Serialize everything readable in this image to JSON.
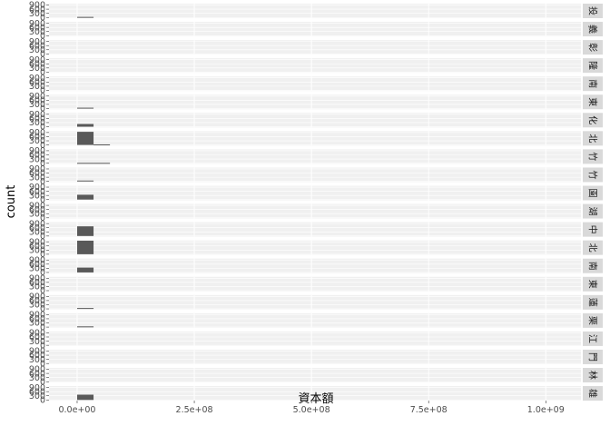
{
  "chart_data": {
    "type": "bar",
    "xlabel": "資本額",
    "ylabel": "count",
    "xlim": [
      -60000000,
      1075000000
    ],
    "x_ticks": [
      {
        "value": 0,
        "label": "0.0e+00"
      },
      {
        "value": 250000000,
        "label": "2.5e+08"
      },
      {
        "value": 500000000,
        "label": "5.0e+08"
      },
      {
        "value": 750000000,
        "label": "7.5e+08"
      },
      {
        "value": 1000000000,
        "label": "1.0e+09"
      }
    ],
    "y_ticks": [
      {
        "value": 0,
        "label": "0"
      },
      {
        "value": 300,
        "label": "300"
      },
      {
        "value": 600,
        "label": "600"
      },
      {
        "value": 900,
        "label": "900"
      }
    ],
    "ylim": [
      -50,
      1000
    ],
    "bin_edges": [
      0,
      35000000,
      70000000
    ],
    "panels": [
      {
        "label": "投",
        "counts": [
          40,
          0
        ]
      },
      {
        "label": "義",
        "counts": [
          0,
          0
        ]
      },
      {
        "label": "彰",
        "counts": [
          0,
          0
        ]
      },
      {
        "label": "隆",
        "counts": [
          0,
          0
        ]
      },
      {
        "label": "南",
        "counts": [
          0,
          0
        ]
      },
      {
        "label": "東",
        "counts": [
          60,
          0
        ]
      },
      {
        "label": "化",
        "counts": [
          200,
          0
        ]
      },
      {
        "label": "北",
        "counts": [
          950,
          40
        ]
      },
      {
        "label": "竹",
        "counts": [
          20,
          20
        ]
      },
      {
        "label": "竹",
        "counts": [
          60,
          0
        ]
      },
      {
        "label": "園",
        "counts": [
          350,
          0
        ]
      },
      {
        "label": "湖",
        "counts": [
          0,
          0
        ]
      },
      {
        "label": "中",
        "counts": [
          700,
          0
        ]
      },
      {
        "label": "北",
        "counts": [
          980,
          0
        ]
      },
      {
        "label": "南",
        "counts": [
          350,
          0
        ]
      },
      {
        "label": "東",
        "counts": [
          0,
          0
        ]
      },
      {
        "label": "蓮",
        "counts": [
          60,
          0
        ]
      },
      {
        "label": "栗",
        "counts": [
          50,
          0
        ]
      },
      {
        "label": "江",
        "counts": [
          0,
          0
        ]
      },
      {
        "label": "門",
        "counts": [
          0,
          0
        ]
      },
      {
        "label": "林",
        "counts": [
          0,
          0
        ]
      },
      {
        "label": "雄",
        "counts": [
          380,
          0
        ]
      }
    ],
    "grid": true,
    "bar_color": "#595959",
    "panel_background": "#f0f0f0",
    "strip_background": "#d9d9d9"
  }
}
